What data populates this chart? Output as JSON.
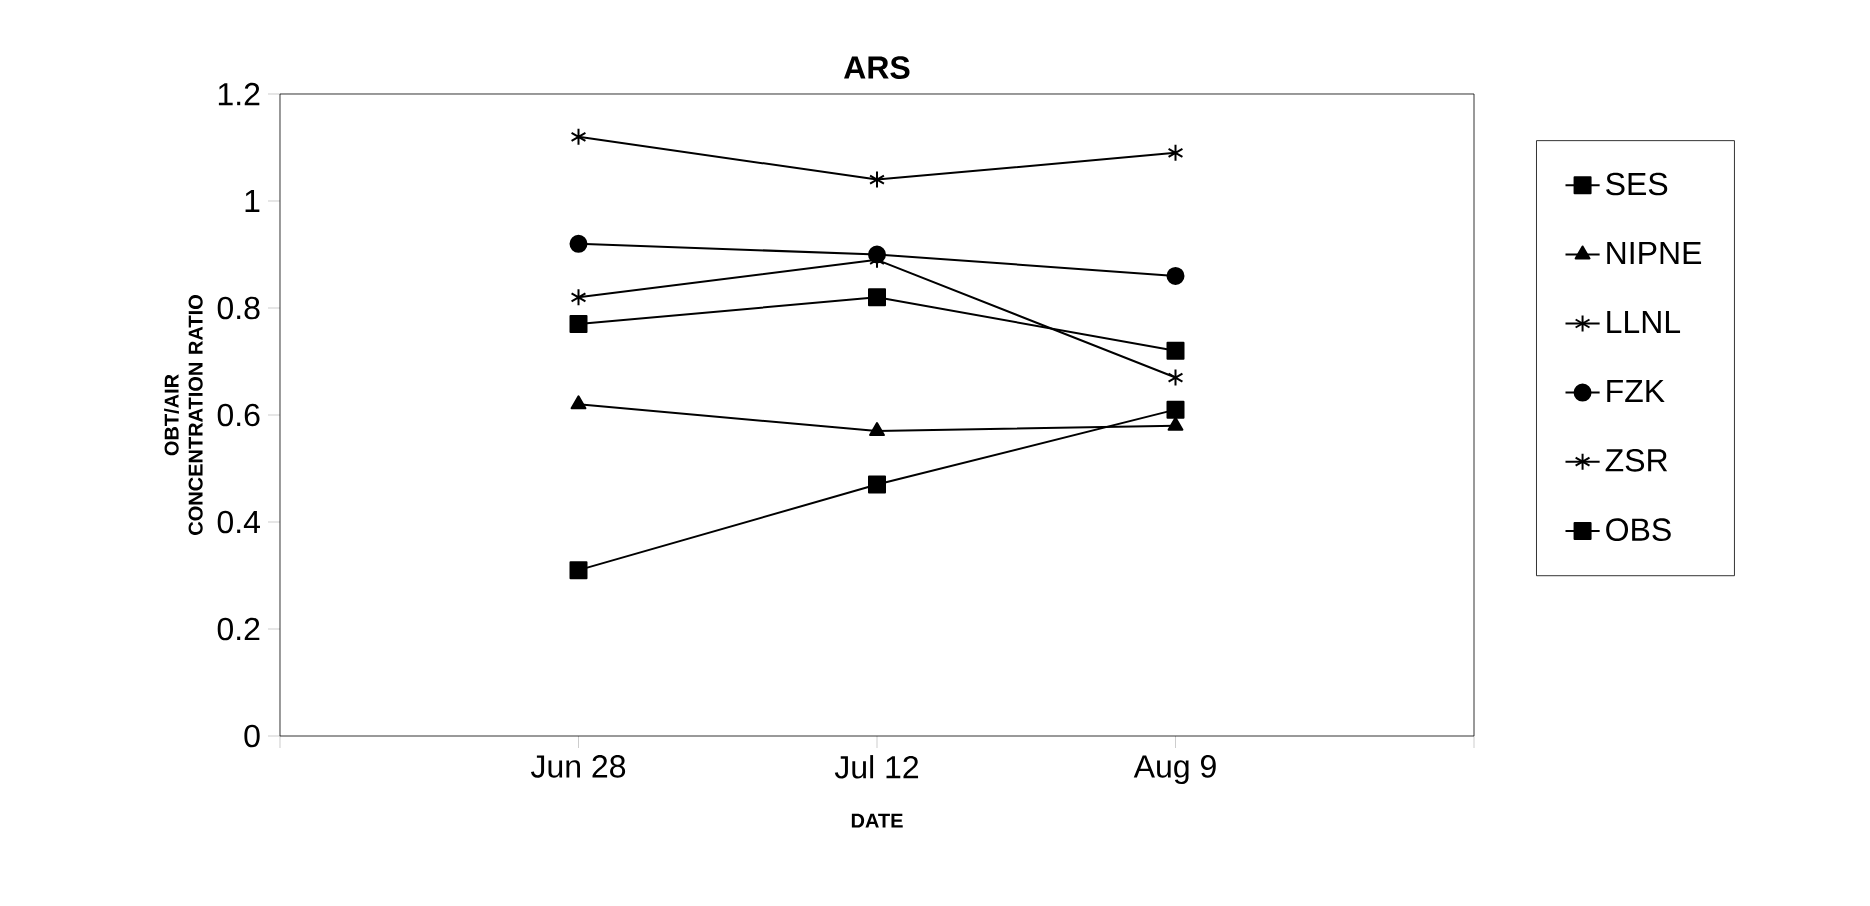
{
  "chart_data": {
    "type": "line",
    "title": "ARS",
    "xlabel": "DATE",
    "ylabel": "OBT/AIR CONCENTRATION RATIO",
    "categories": [
      "Jun 28",
      "Jul 12",
      "Aug 9"
    ],
    "ylim": [
      0,
      1.2
    ],
    "yticks": [
      0,
      0.2,
      0.4,
      0.6,
      0.8,
      1,
      1.2
    ],
    "grid": false,
    "legend": "right",
    "series": [
      {
        "name": "SES",
        "color": "#000000",
        "marker": "square",
        "values": [
          0.77,
          0.82,
          0.72
        ]
      },
      {
        "name": "NIPNE",
        "color": "#000000",
        "marker": "triangle",
        "values": [
          0.62,
          0.57,
          0.58
        ]
      },
      {
        "name": "LLNL",
        "color": "#000000",
        "marker": "cross",
        "values": [
          0.82,
          0.89,
          0.67
        ]
      },
      {
        "name": "FZK",
        "color": "#000000",
        "marker": "circle",
        "values": [
          0.92,
          0.9,
          0.86
        ]
      },
      {
        "name": "ZSR",
        "color": "#000000",
        "marker": "cross",
        "values": [
          1.12,
          1.04,
          1.09
        ]
      },
      {
        "name": "OBS",
        "color": "#000000",
        "marker": "square",
        "values": [
          0.31,
          0.47,
          0.61
        ]
      }
    ]
  }
}
